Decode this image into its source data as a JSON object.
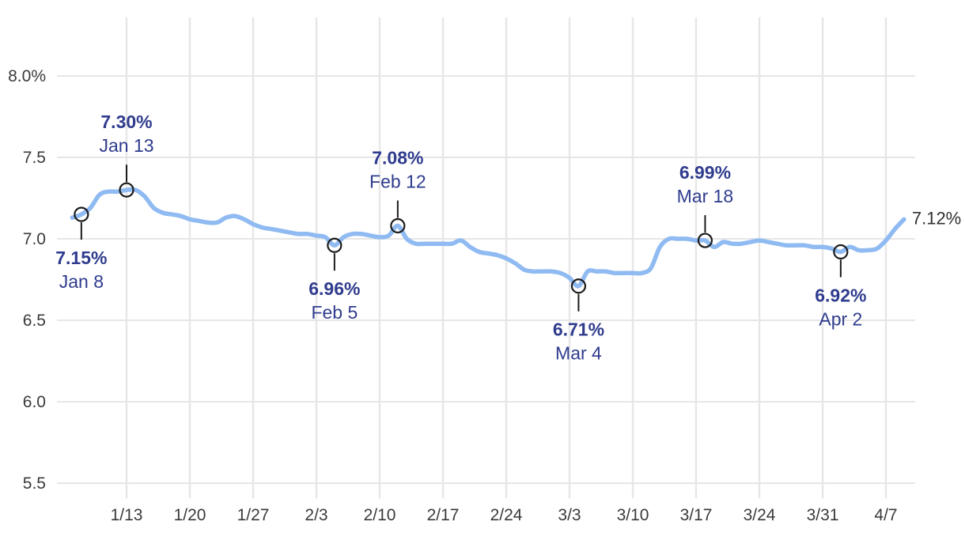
{
  "chart_data": {
    "type": "line",
    "title": "",
    "xlabel": "",
    "ylabel": "",
    "grid": true,
    "legend": "none",
    "ylim": [
      5.5,
      8.0
    ],
    "x_unit": "days",
    "y_unit": "percent",
    "x_tick_labels": [
      "1/13",
      "1/20",
      "1/27",
      "2/3",
      "2/10",
      "2/17",
      "2/24",
      "3/3",
      "3/10",
      "3/17",
      "3/24",
      "3/31",
      "4/7"
    ],
    "x_tick_indices": [
      6,
      13,
      20,
      27,
      34,
      41,
      48,
      55,
      62,
      69,
      76,
      83,
      90
    ],
    "y_tick_labels": [
      "8.0%",
      "7.5",
      "7.0",
      "6.5",
      "6.0",
      "5.5"
    ],
    "y_tick_values": [
      8.0,
      7.5,
      7.0,
      6.5,
      6.0,
      5.5
    ],
    "series": [
      {
        "name": "rate",
        "values": [
          7.13,
          7.15,
          7.19,
          7.27,
          7.29,
          7.29,
          7.3,
          7.3,
          7.26,
          7.19,
          7.16,
          7.15,
          7.14,
          7.12,
          7.11,
          7.1,
          7.1,
          7.13,
          7.14,
          7.12,
          7.09,
          7.07,
          7.06,
          7.05,
          7.04,
          7.03,
          7.03,
          7.02,
          7.01,
          6.96,
          7.01,
          7.03,
          7.03,
          7.02,
          7.01,
          7.02,
          7.08,
          7.0,
          6.97,
          6.97,
          6.97,
          6.97,
          6.97,
          6.99,
          6.95,
          6.92,
          6.91,
          6.9,
          6.88,
          6.85,
          6.81,
          6.8,
          6.8,
          6.8,
          6.79,
          6.76,
          6.71,
          6.8,
          6.8,
          6.8,
          6.79,
          6.79,
          6.79,
          6.79,
          6.82,
          6.95,
          7.0,
          7.0,
          7.0,
          6.99,
          6.99,
          6.95,
          6.98,
          6.97,
          6.97,
          6.98,
          6.99,
          6.98,
          6.97,
          6.96,
          6.96,
          6.96,
          6.95,
          6.95,
          6.94,
          6.92,
          6.95,
          6.93,
          6.93,
          6.94,
          6.99,
          7.06,
          7.12
        ]
      }
    ],
    "annotations": [
      {
        "value_label": "7.15%",
        "date_label": "Jan 8",
        "value": 7.15,
        "index": 1,
        "side": "below"
      },
      {
        "value_label": "7.30%",
        "date_label": "Jan 13",
        "value": 7.3,
        "index": 6,
        "side": "above"
      },
      {
        "value_label": "6.96%",
        "date_label": "Feb 5",
        "value": 6.96,
        "index": 29,
        "side": "below"
      },
      {
        "value_label": "7.08%",
        "date_label": "Feb 12",
        "value": 7.08,
        "index": 36,
        "side": "above"
      },
      {
        "value_label": "6.71%",
        "date_label": "Mar 4",
        "value": 6.71,
        "index": 56,
        "side": "below"
      },
      {
        "value_label": "6.99%",
        "date_label": "Mar 18",
        "value": 6.99,
        "index": 70,
        "side": "above"
      },
      {
        "value_label": "6.92%",
        "date_label": "Apr 2",
        "value": 6.92,
        "index": 85,
        "side": "below"
      }
    ],
    "end_label": "7.12%"
  },
  "colors": {
    "line": "#8FBAF2",
    "annotation_text": "#2F3C8E",
    "axis_text": "#3A3A3A",
    "grid": "#E6E6E6",
    "marker_stroke": "#1B1B1B",
    "end_label_text": "#303030",
    "background": "#FFFFFF"
  }
}
